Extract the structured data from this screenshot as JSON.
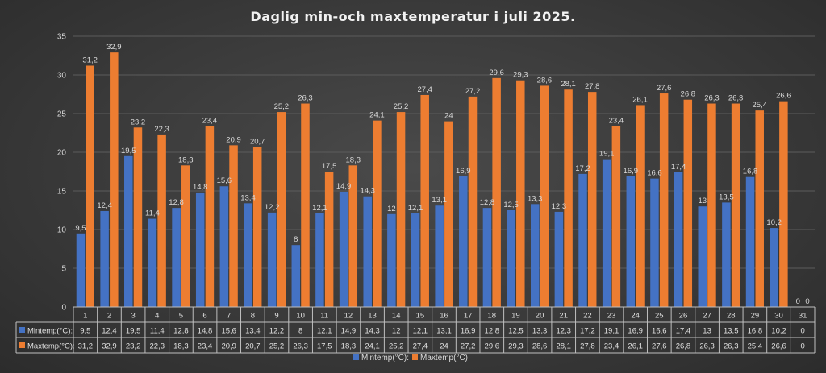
{
  "chart_data": {
    "type": "bar",
    "title": "Daglig min-och maxtemperatur i juli 2025.",
    "categories": [
      "1",
      "2",
      "3",
      "4",
      "5",
      "6",
      "7",
      "8",
      "9",
      "10",
      "11",
      "12",
      "13",
      "14",
      "15",
      "16",
      "17",
      "18",
      "19",
      "20",
      "21",
      "22",
      "23",
      "24",
      "25",
      "26",
      "27",
      "28",
      "29",
      "30",
      "31"
    ],
    "ylim": [
      0,
      35
    ],
    "yticks": [
      "0",
      "5",
      "10",
      "15",
      "20",
      "25",
      "30",
      "35"
    ],
    "grid": true,
    "legend_position": "bottom",
    "series": [
      {
        "name": "Mintemp(°C):",
        "table_label": "Mintemp(°C):",
        "color": "#4472C4",
        "values": [
          9.5,
          12.4,
          19.5,
          11.4,
          12.8,
          14.8,
          15.6,
          13.4,
          12.2,
          8,
          12.1,
          14.9,
          14.3,
          12,
          12.1,
          13.1,
          16.9,
          12.8,
          12.5,
          13.3,
          12.3,
          17.2,
          19.1,
          16.9,
          16.6,
          17.4,
          13,
          13.5,
          16.8,
          10.2,
          0
        ],
        "labels": [
          "9,5",
          "12,4",
          "19,5",
          "11,4",
          "12,8",
          "14,8",
          "15,6",
          "13,4",
          "12,2",
          "8",
          "12,1",
          "14,9",
          "14,3",
          "12",
          "12,1",
          "13,1",
          "16,9",
          "12,8",
          "12,5",
          "13,3",
          "12,3",
          "17,2",
          "19,1",
          "16,9",
          "16,6",
          "17,4",
          "13",
          "13,5",
          "16,8",
          "10,2",
          "0"
        ]
      },
      {
        "name": "Maxtemp(°C)",
        "table_label": "Maxtemp(°C):",
        "color": "#ED7D31",
        "values": [
          31.2,
          32.9,
          23.2,
          22.3,
          18.3,
          23.4,
          20.9,
          20.7,
          25.2,
          26.3,
          17.5,
          18.3,
          24.1,
          25.2,
          27.4,
          24,
          27.2,
          29.6,
          29.3,
          28.6,
          28.1,
          27.8,
          23.4,
          26.1,
          27.6,
          26.8,
          26.3,
          26.3,
          25.4,
          26.6,
          0
        ],
        "labels": [
          "31,2",
          "32,9",
          "23,2",
          "22,3",
          "18,3",
          "23,4",
          "20,9",
          "20,7",
          "25,2",
          "26,3",
          "17,5",
          "18,3",
          "24,1",
          "25,2",
          "27,4",
          "24",
          "27,2",
          "29,6",
          "29,3",
          "28,6",
          "28,1",
          "27,8",
          "23,4",
          "26,1",
          "27,6",
          "26,8",
          "26,3",
          "26,3",
          "25,4",
          "26,6",
          "0"
        ]
      }
    ]
  }
}
